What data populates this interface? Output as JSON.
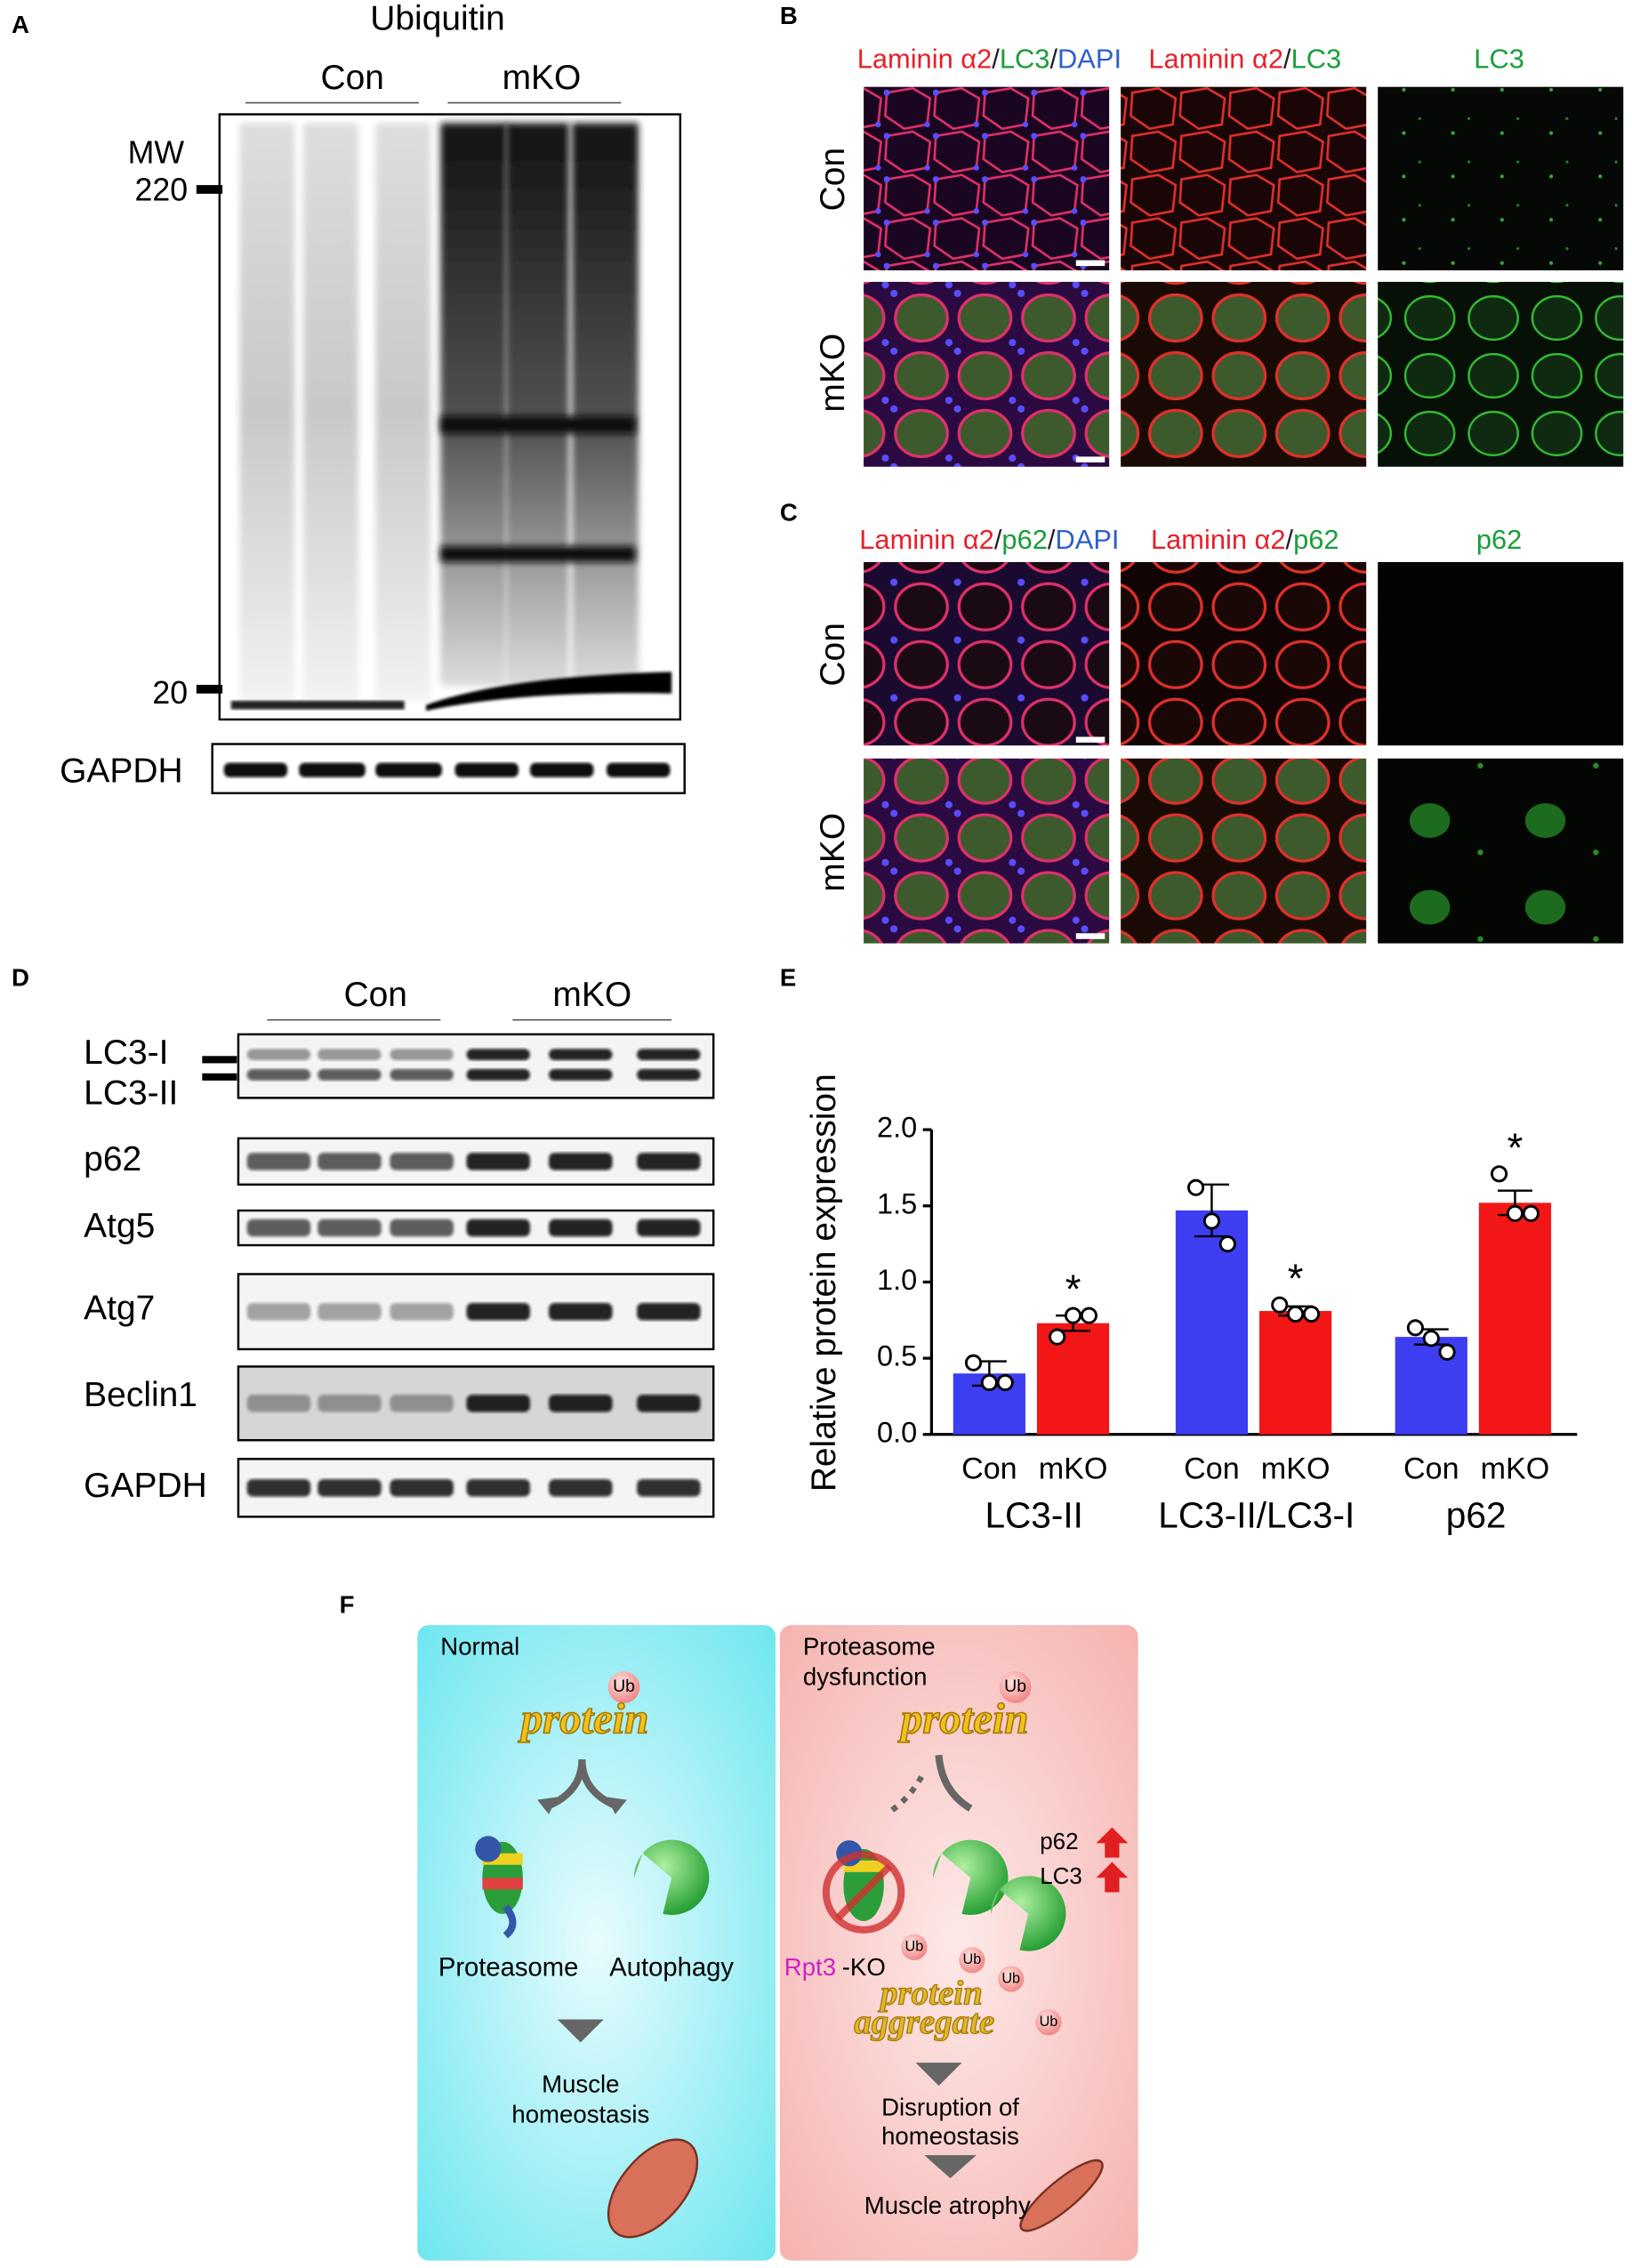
{
  "panel_a": {
    "label": "A",
    "title": "Ubiquitin",
    "groups": [
      "Con",
      "mKO"
    ],
    "mw": "MW",
    "markers": [
      "220",
      "20"
    ],
    "loading_control": "GAPDH"
  },
  "panel_b": {
    "label": "B",
    "columns": [
      [
        {
          "text": "Laminin α2",
          "color": "#e8202a"
        },
        {
          "text": "/",
          "color": "#222222"
        },
        {
          "text": "LC3",
          "color": "#1a9e3a"
        },
        {
          "text": "/",
          "color": "#222222"
        },
        {
          "text": "DAPI",
          "color": "#2e5fcc"
        }
      ],
      [
        {
          "text": "Laminin α2",
          "color": "#e8202a"
        },
        {
          "text": "/",
          "color": "#222222"
        },
        {
          "text": "LC3",
          "color": "#1a9e3a"
        }
      ],
      [
        {
          "text": "LC3",
          "color": "#1a9e3a"
        }
      ]
    ],
    "rows": [
      "Con",
      "mKO"
    ]
  },
  "panel_c": {
    "label": "C",
    "columns": [
      [
        {
          "text": "Laminin α2",
          "color": "#e8202a"
        },
        {
          "text": "/",
          "color": "#222222"
        },
        {
          "text": "p62",
          "color": "#1a9e3a"
        },
        {
          "text": "/",
          "color": "#222222"
        },
        {
          "text": "DAPI",
          "color": "#2e5fcc"
        }
      ],
      [
        {
          "text": "Laminin α2",
          "color": "#e8202a"
        },
        {
          "text": "/",
          "color": "#222222"
        },
        {
          "text": "p62",
          "color": "#1a9e3a"
        }
      ],
      [
        {
          "text": "p62",
          "color": "#1a9e3a"
        }
      ]
    ],
    "rows": [
      "Con",
      "mKO"
    ]
  },
  "panel_d": {
    "label": "D",
    "groups": [
      "Con",
      "mKO"
    ],
    "blots": [
      "LC3-I",
      "LC3-II",
      "p62",
      "Atg5",
      "Atg7",
      "Beclin1",
      "GAPDH"
    ]
  },
  "panel_e": {
    "label": "E",
    "chart_data": {
      "type": "bar",
      "ylabel": "Relative protein expression",
      "categories": [
        "LC3-II",
        "LC3-II/LC3-I",
        "p62"
      ],
      "series": [
        {
          "name": "Con",
          "color": "#3d3df2",
          "values": [
            0.4,
            1.47,
            0.64
          ],
          "errors": [
            0.08,
            0.17,
            0.05
          ],
          "points": [
            [
              0.47,
              0.34,
              0.34
            ],
            [
              1.62,
              1.4,
              1.25
            ],
            [
              0.7,
              0.63,
              0.54
            ]
          ]
        },
        {
          "name": "mKO",
          "color": "#f21616",
          "values": [
            0.73,
            0.81,
            1.52
          ],
          "errors": [
            0.05,
            0.03,
            0.08
          ],
          "points": [
            [
              0.64,
              0.78,
              0.78
            ],
            [
              0.85,
              0.79,
              0.79
            ],
            [
              1.71,
              1.45,
              1.45
            ]
          ],
          "annotations": [
            "*",
            "*",
            "*"
          ]
        }
      ],
      "ylim": [
        0,
        2
      ],
      "yticks": [
        {
          "value": 0,
          "label": "0.0"
        },
        {
          "value": 0.5,
          "label": "0.5"
        },
        {
          "value": 1,
          "label": "1.0"
        },
        {
          "value": 1.5,
          "label": "1.5"
        },
        {
          "value": 2,
          "label": "2.0"
        }
      ]
    }
  },
  "panel_f": {
    "label": "F",
    "normal": {
      "title": "Normal",
      "ub": "Ub",
      "protein": "protein",
      "proteasome": "Proteasome",
      "autophagy": "Autophagy",
      "outcome": [
        "Muscle",
        "homeostasis"
      ]
    },
    "dysfunction": {
      "title": [
        "Proteasome",
        "dysfunction"
      ],
      "ub": "Ub",
      "protein": "protein",
      "p62": "p62",
      "lc3": "LC3",
      "rpt3": "Rpt3",
      "ko": "-KO",
      "aggregate_ub": [
        "Ub",
        "Ub",
        "Ub",
        "Ub"
      ],
      "aggregate": [
        "protein",
        "aggregate"
      ],
      "outcome": [
        "Disruption of",
        "homeostasis"
      ],
      "final": "Muscle atrophy"
    }
  }
}
